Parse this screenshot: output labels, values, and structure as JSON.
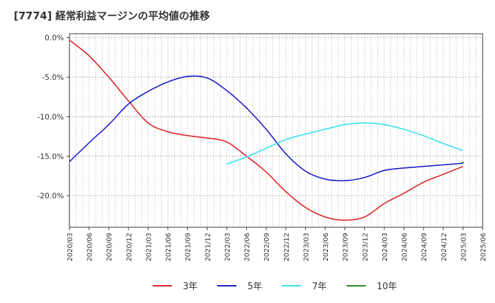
{
  "chart_data": {
    "type": "line",
    "title": "[7774]  経常利益マージンの平均値の推移",
    "xlabel": "",
    "ylabel": "",
    "ylim": [
      -24,
      0.5
    ],
    "yticks": [
      0,
      -5,
      -10,
      -15,
      -20
    ],
    "ytick_labels": [
      "0.0%",
      "-5.0%",
      "-10.0%",
      "-15.0%",
      "-20.0%"
    ],
    "xlim": [
      "2020/03",
      "2025/06"
    ],
    "xtick_labels": [
      "2020/03",
      "2020/06",
      "2020/09",
      "2020/12",
      "2021/03",
      "2021/06",
      "2021/09",
      "2021/12",
      "2022/03",
      "2022/06",
      "2022/09",
      "2022/12",
      "2023/03",
      "2023/06",
      "2023/09",
      "2023/12",
      "2024/03",
      "2024/06",
      "2024/09",
      "2024/12",
      "2025/03",
      "2025/06"
    ],
    "grid": true,
    "legend_position": "bottom",
    "series": [
      {
        "name": "3年",
        "color": "#dd2222",
        "x": [
          "2020/03",
          "2020/06",
          "2020/09",
          "2020/12",
          "2021/03",
          "2021/06",
          "2021/09",
          "2021/12",
          "2022/03",
          "2022/06",
          "2022/09",
          "2022/12",
          "2023/03",
          "2023/06",
          "2023/09",
          "2023/12",
          "2024/03",
          "2024/06",
          "2024/09",
          "2024/12",
          "2025/03"
        ],
        "values": [
          -0.3,
          -2.3,
          -5.0,
          -8.0,
          -10.8,
          -11.9,
          -12.4,
          -12.7,
          -13.2,
          -15.0,
          -17.0,
          -19.5,
          -21.5,
          -22.7,
          -23.1,
          -22.7,
          -21.0,
          -19.7,
          -18.3,
          -17.3,
          -16.3
        ]
      },
      {
        "name": "5年",
        "color": "#1a1acc",
        "x": [
          "2020/03",
          "2020/06",
          "2020/09",
          "2020/12",
          "2021/03",
          "2021/06",
          "2021/09",
          "2021/12",
          "2022/03",
          "2022/06",
          "2022/09",
          "2022/12",
          "2023/03",
          "2023/06",
          "2023/09",
          "2023/12",
          "2024/03",
          "2024/06",
          "2024/09",
          "2024/12",
          "2025/03"
        ],
        "values": [
          -15.7,
          -13.3,
          -11.0,
          -8.4,
          -6.8,
          -5.6,
          -4.9,
          -5.1,
          -6.7,
          -8.9,
          -11.6,
          -14.7,
          -16.9,
          -17.9,
          -18.1,
          -17.7,
          -16.8,
          -16.5,
          -16.3,
          -16.1,
          -15.9
        ]
      },
      {
        "name": "7年",
        "color": "#33e0f0",
        "x": [
          "2022/03",
          "2022/06",
          "2022/09",
          "2022/12",
          "2023/03",
          "2023/06",
          "2023/09",
          "2023/12",
          "2024/03",
          "2024/06",
          "2024/09",
          "2024/12",
          "2025/03"
        ],
        "values": [
          -16.0,
          -15.1,
          -14.0,
          -12.9,
          -12.2,
          -11.6,
          -11.0,
          -10.8,
          -11.0,
          -11.6,
          -12.4,
          -13.4,
          -14.3
        ]
      },
      {
        "name": "10年",
        "color": "#228822",
        "x": [
          "2025/03"
        ],
        "values": [
          -15.8
        ]
      }
    ]
  }
}
